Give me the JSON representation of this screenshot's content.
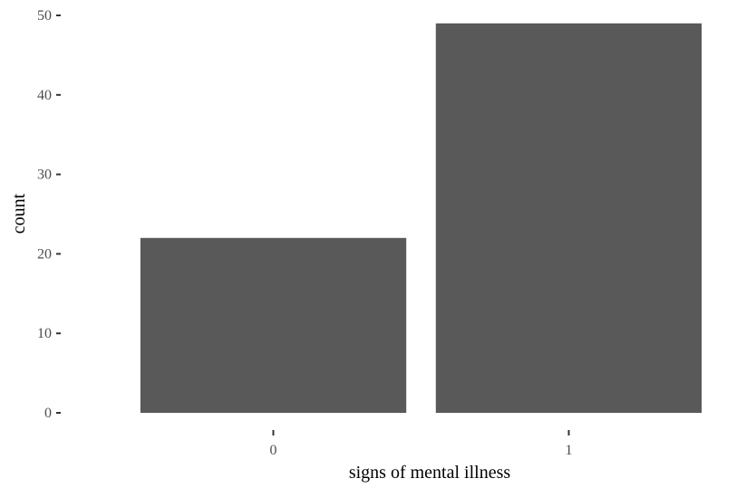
{
  "chart_data": {
    "type": "bar",
    "title": "",
    "xlabel": "signs of mental illness",
    "ylabel": "count",
    "categories": [
      "0",
      "1"
    ],
    "values": [
      22,
      49
    ],
    "ylim": [
      0,
      50
    ],
    "yticks": [
      0,
      10,
      20,
      30,
      40,
      50
    ],
    "grid": false,
    "legend": "none",
    "colors": {
      "bar": "#595959",
      "background": "#ffffff",
      "tick_label": "#4d4d4d",
      "tick_mark": "#333333",
      "axis_title": "#000000"
    }
  }
}
